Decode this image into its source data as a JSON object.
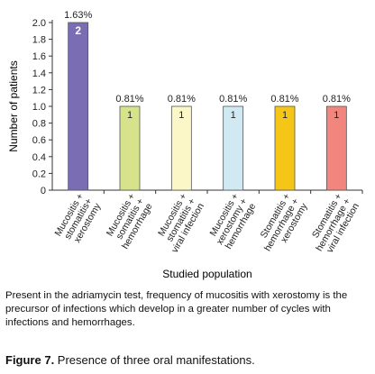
{
  "chart_data": {
    "type": "bar",
    "categories": [
      [
        "Mucositis +",
        "stomatitis+",
        "xerostomy"
      ],
      [
        "Mucositis +",
        "somatitis +",
        "hemorrhage"
      ],
      [
        "Mucositis +",
        "stomatitis +",
        "viral infection"
      ],
      [
        "Mucositis +",
        "xerostomy +",
        "hemorrhage"
      ],
      [
        "Stomatitis +",
        "hemorrhage +",
        "xerostomy"
      ],
      [
        "Stomatitis +",
        "hemorrhage +",
        "viral infection"
      ]
    ],
    "values": [
      2,
      1,
      1,
      1,
      1,
      1
    ],
    "value_labels": [
      "2",
      "1",
      "1",
      "1",
      "1",
      "1"
    ],
    "percent_labels": [
      "1.63%",
      "0.81%",
      "0.81%",
      "0.81%",
      "0.81%",
      "0.81%"
    ],
    "colors": [
      "#7b6db4",
      "#d6e38b",
      "#fbf7c6",
      "#d0e9f2",
      "#f5c518",
      "#f2867e"
    ],
    "title": "",
    "xlabel": "Studied population",
    "ylabel": "Number of patients",
    "ylim": [
      0,
      2.0
    ],
    "yticks": [
      "0",
      "0.2",
      "0.4",
      "0.6",
      "0.8",
      "1.0",
      "1.2",
      "1.4",
      "1.6",
      "1.8",
      "2.0"
    ],
    "grid": false,
    "legend": "none"
  },
  "caption": "Present in the adriamycin test, frequency of mucositis with xerostomy is the precursor of infections which develop in a greater number of cycles with infections and hemorrhages.",
  "figure_label": "Figure 7.",
  "figure_title": " Presence of three oral manifestations."
}
